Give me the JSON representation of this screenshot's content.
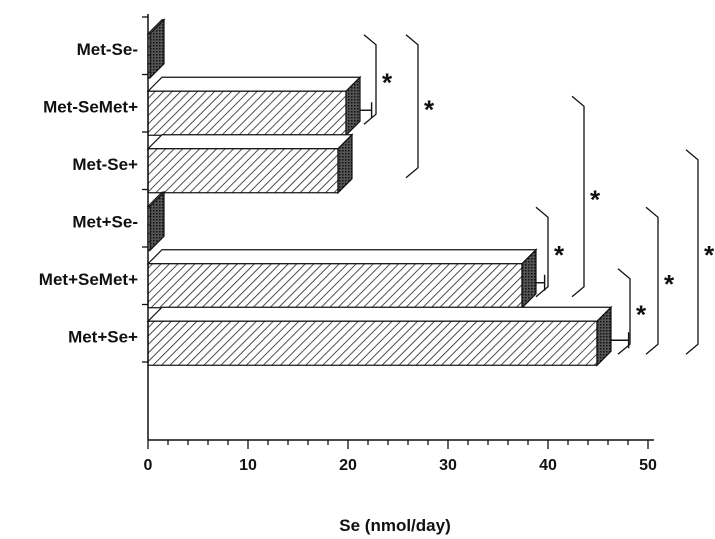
{
  "chart_data": {
    "type": "bar",
    "orientation": "horizontal",
    "style": "3d-hatched",
    "categories": [
      "Met-Se-",
      "Met-SeMet+",
      "Met-Se+",
      "Met+Se-",
      "Met+SeMet+",
      "Met+Se+"
    ],
    "values": [
      0.2,
      19.8,
      19.0,
      0.2,
      37.4,
      44.9
    ],
    "errors": [
      0,
      2.0,
      0,
      0,
      1.7,
      2.6
    ],
    "xlabel": "Se (nmol/day)",
    "xlim": [
      0,
      50
    ],
    "xticks": [
      0,
      10,
      20,
      30,
      40,
      50
    ],
    "significance": [
      {
        "between": [
          "Met-Se-",
          "Met-SeMet+"
        ],
        "label": "*"
      },
      {
        "between": [
          "Met-Se-",
          "Met-Se+"
        ],
        "label": "*"
      },
      {
        "between": [
          "Met+Se-",
          "Met+SeMet+"
        ],
        "label": "*"
      },
      {
        "between": [
          "Met-SeMet+",
          "Met+SeMet+"
        ],
        "label": "*"
      },
      {
        "between": [
          "Met+SeMet+",
          "Met+Se+"
        ],
        "label": "*"
      },
      {
        "between": [
          "Met+Se-",
          "Met+Se+"
        ],
        "label": "*"
      },
      {
        "between": [
          "Met-Se+",
          "Met+Se+"
        ],
        "label": "*"
      }
    ]
  }
}
